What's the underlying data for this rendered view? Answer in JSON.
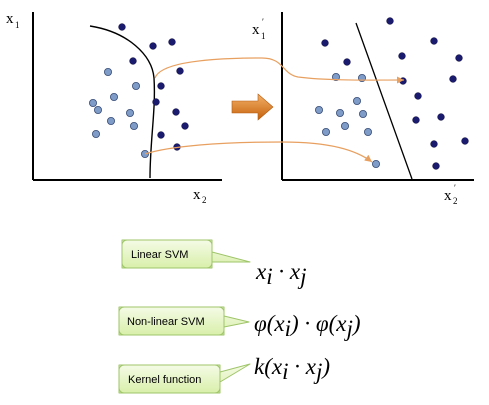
{
  "left_plot": {
    "y_axis": {
      "main": "x",
      "sub": "1"
    },
    "x_axis": {
      "main": "x",
      "sub": "2"
    }
  },
  "right_plot": {
    "y_axis": {
      "main": "x",
      "sub": "1",
      "prime": "′"
    },
    "x_axis": {
      "main": "x",
      "sub": "2",
      "prime": "′"
    }
  },
  "callouts": {
    "linear": "Linear SVM",
    "nonlinear": "Non-linear SVM",
    "kernel": "Kernel function"
  },
  "formulas": {
    "linear": {
      "a": "x",
      "ai": "i",
      "op": " · ",
      "b": "x",
      "bj": "j"
    },
    "nonlinear": {
      "p1": "φ(x",
      "pi": "i",
      "mid": ") · φ(x",
      "pj": "j",
      "end": ")"
    },
    "kernel": {
      "k": "k(x",
      "ki": "i",
      "mid": " · x",
      "kj": "j",
      "end": ")"
    }
  },
  "colors": {
    "dark_point": "#1a1a6e",
    "light_point": "#7f9bc8",
    "connector": "#e8a060",
    "arrow_fill": "#e07b20",
    "callout_fill": "#e6f5c4",
    "callout_border": "#9fc56a"
  }
}
